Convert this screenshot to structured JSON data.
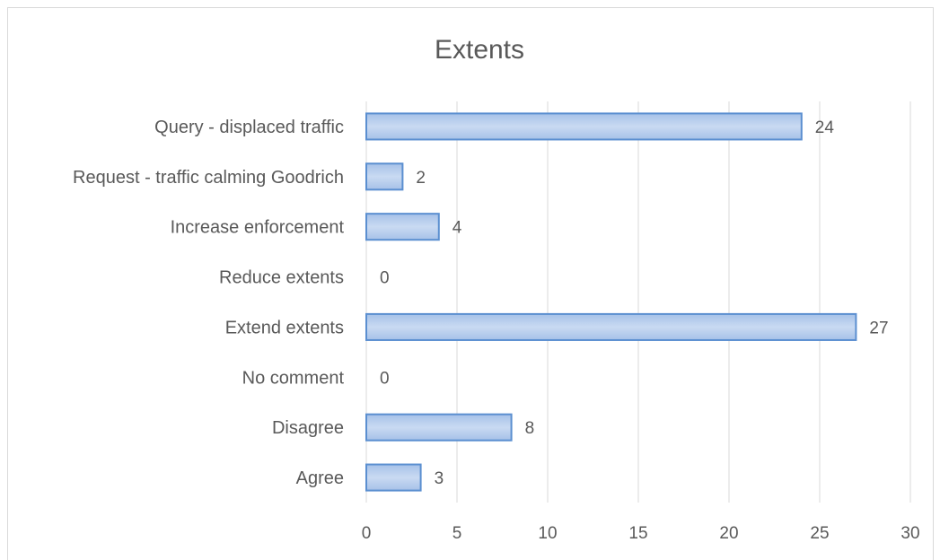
{
  "chart_data": {
    "type": "bar",
    "orientation": "horizontal",
    "title": "Extents",
    "categories": [
      "Agree",
      "Disagree",
      "No comment",
      "Extend extents",
      "Reduce extents",
      "Increase enforcement",
      "Request - traffic calming Goodrich",
      "Query - displaced traffic"
    ],
    "values": [
      3,
      8,
      0,
      27,
      0,
      4,
      2,
      24
    ],
    "xlim": [
      0,
      30
    ],
    "xticks": [
      "0",
      "5",
      "10",
      "15",
      "20",
      "25",
      "30"
    ],
    "grid": true,
    "legend": false,
    "data_labels": true,
    "bar_color": "#a6c1e8",
    "bar_color_light": "#c9daf2",
    "bar_border_color": "#5b8fd0",
    "gridline_color": "#d9d9d9"
  }
}
